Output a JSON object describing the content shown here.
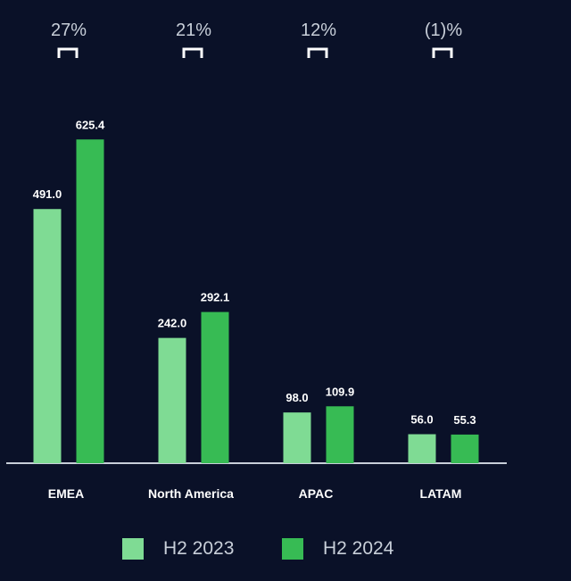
{
  "colors": {
    "background": "#0a1128",
    "h2_2023": "#7fdb94",
    "h2_2024": "#37bb54",
    "text": "#ffffff",
    "growth_text": "#c8cfd9",
    "axis": "#c8cfd9"
  },
  "chart_data": {
    "type": "bar",
    "categories": [
      "EMEA",
      "North America",
      "APAC",
      "LATAM"
    ],
    "series": [
      {
        "name": "H2 2023",
        "values": [
          491.0,
          242.0,
          98.0,
          56.0
        ]
      },
      {
        "name": "H2 2024",
        "values": [
          625.4,
          292.1,
          109.9,
          55.3
        ]
      }
    ],
    "value_labels": [
      [
        "491.0",
        "242.0",
        "98.0",
        "56.0"
      ],
      [
        "625.4",
        "292.1",
        "109.9",
        "55.3"
      ]
    ],
    "growth_labels": [
      "27%",
      "21%",
      "12%",
      "(1)%"
    ],
    "ylim": [
      0,
      650
    ],
    "grid": false,
    "legend_position": "bottom",
    "title": "",
    "xlabel": "",
    "ylabel": ""
  }
}
